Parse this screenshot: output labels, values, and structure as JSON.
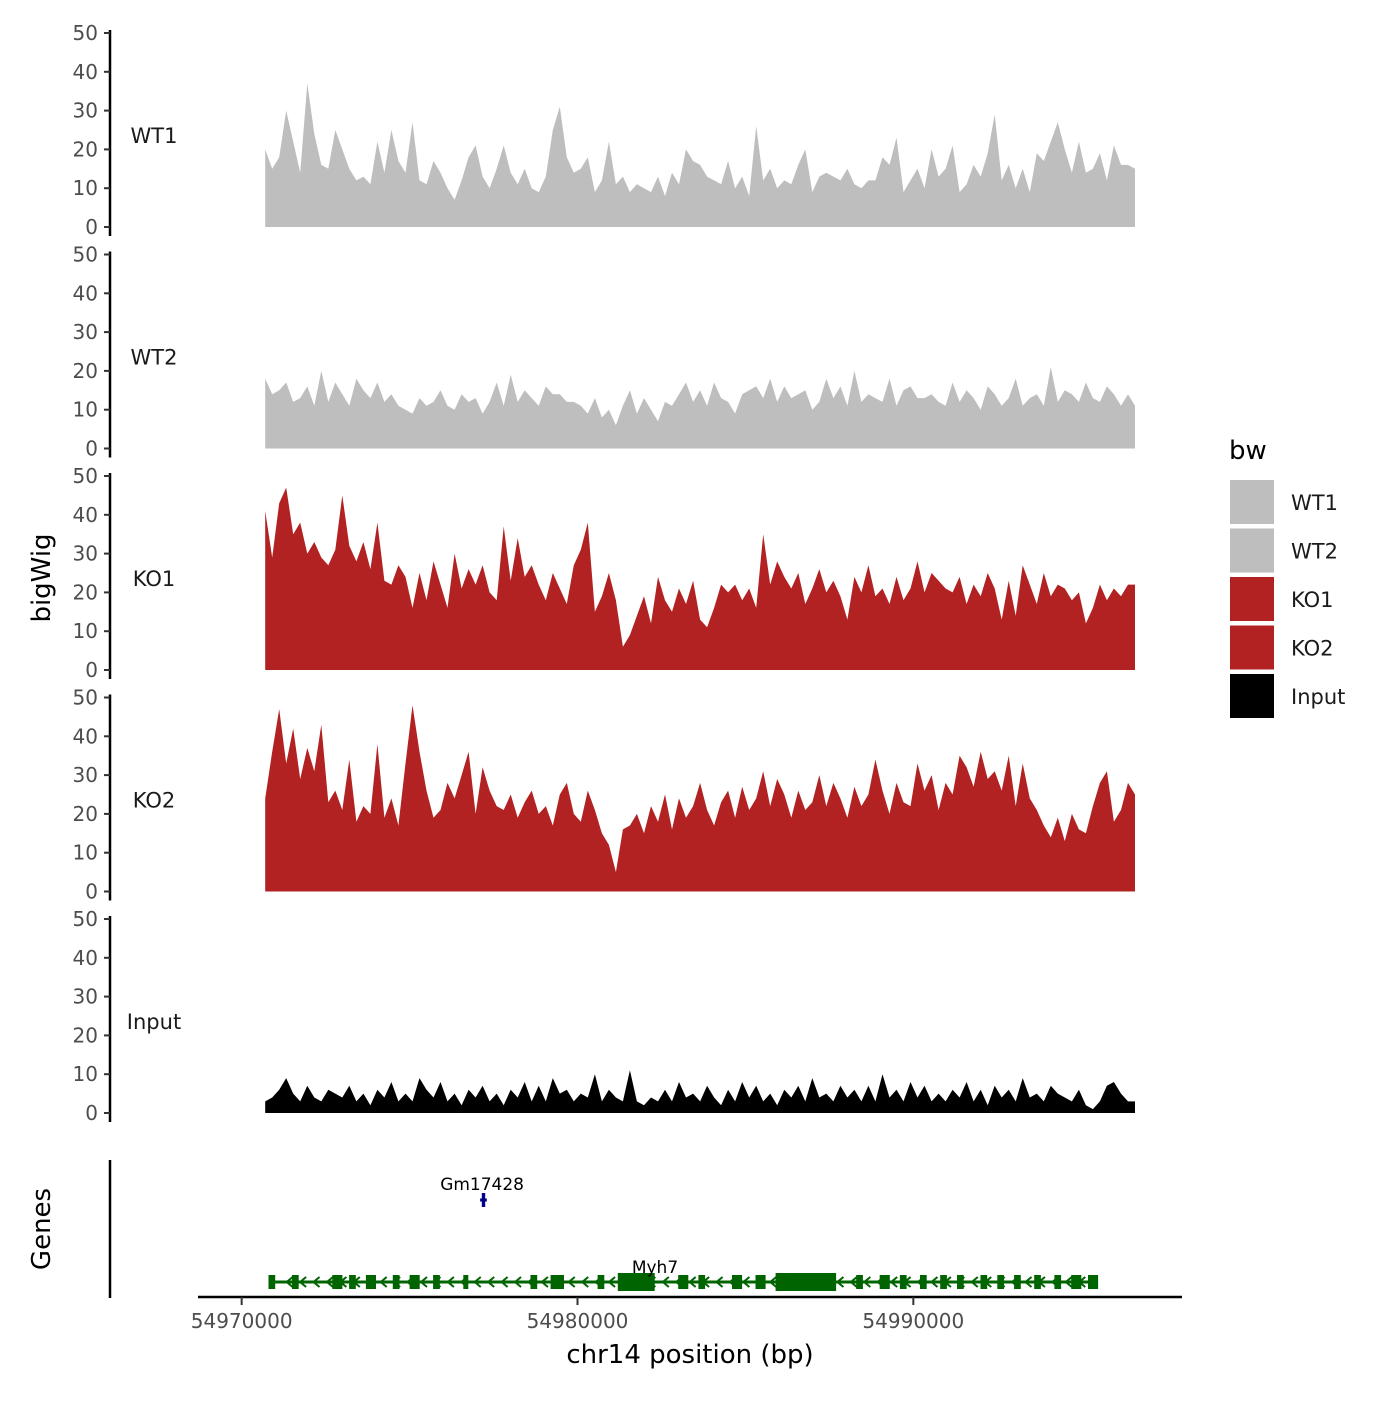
{
  "chart_data": {
    "type": "area",
    "title": "",
    "ylabel": "bigWig",
    "xlabel": "chr14 position (bp)",
    "ylim": [
      0,
      50
    ],
    "yticks": [
      0,
      10,
      20,
      30,
      40,
      50
    ],
    "xlim": [
      54968700,
      54998000
    ],
    "xticks": [
      54970000,
      54980000,
      54990000
    ],
    "xtick_labels": [
      "54970000",
      "54980000",
      "54990000"
    ],
    "data_range": [
      54970700,
      54996600
    ],
    "tracks": [
      {
        "name": "WT1",
        "color": "#bebebe",
        "values": [
          20,
          15,
          18,
          30,
          22,
          14,
          37,
          24,
          16,
          15,
          25,
          20,
          15,
          12,
          13,
          11,
          22,
          14,
          25,
          17,
          14,
          27,
          12,
          11,
          17,
          14,
          10,
          7,
          12,
          18,
          21,
          13,
          10,
          15,
          21,
          14,
          11,
          15,
          10,
          9,
          13,
          25,
          31,
          18,
          14,
          15,
          18,
          9,
          12,
          22,
          11,
          13,
          9,
          11,
          10,
          9,
          13,
          8,
          14,
          11,
          20,
          17,
          16,
          13,
          12,
          11,
          17,
          10,
          13,
          8,
          26,
          12,
          15,
          10,
          12,
          11,
          16,
          20,
          9,
          13,
          14,
          13,
          12,
          15,
          11,
          10,
          12,
          12,
          18,
          16,
          23,
          9,
          12,
          15,
          10,
          20,
          13,
          15,
          21,
          9,
          11,
          16,
          13,
          19,
          29,
          12,
          16,
          10,
          15,
          9,
          19,
          17,
          22,
          27,
          20,
          14,
          22,
          14,
          15,
          19,
          12,
          21,
          16,
          16,
          15
        ]
      },
      {
        "name": "WT2",
        "color": "#bebebe",
        "values": [
          18,
          14,
          15,
          17,
          12,
          13,
          16,
          11,
          20,
          12,
          17,
          14,
          11,
          18,
          15,
          13,
          17,
          12,
          14,
          11,
          10,
          9,
          13,
          11,
          12,
          15,
          11,
          10,
          14,
          12,
          13,
          9,
          12,
          17,
          11,
          19,
          12,
          15,
          13,
          11,
          16,
          14,
          14,
          12,
          12,
          11,
          9,
          13,
          8,
          10,
          6,
          11,
          15,
          9,
          13,
          10,
          7,
          12,
          11,
          14,
          17,
          12,
          15,
          11,
          17,
          13,
          12,
          9,
          14,
          15,
          16,
          13,
          18,
          12,
          16,
          13,
          14,
          15,
          10,
          12,
          18,
          13,
          16,
          11,
          20,
          12,
          14,
          13,
          12,
          18,
          11,
          15,
          16,
          13,
          13,
          14,
          12,
          11,
          17,
          12,
          15,
          13,
          10,
          16,
          14,
          11,
          13,
          18,
          11,
          13,
          14,
          11,
          21,
          12,
          15,
          14,
          12,
          17,
          13,
          12,
          16,
          14,
          11,
          14,
          11
        ]
      },
      {
        "name": "KO1",
        "color": "#b22222",
        "values": [
          41,
          29,
          43,
          47,
          35,
          38,
          30,
          33,
          29,
          27,
          31,
          45,
          32,
          28,
          33,
          26,
          38,
          23,
          22,
          27,
          24,
          16,
          25,
          18,
          28,
          22,
          16,
          30,
          21,
          26,
          22,
          27,
          20,
          18,
          37,
          23,
          34,
          24,
          27,
          22,
          18,
          25,
          21,
          17,
          27,
          31,
          38,
          15,
          19,
          25,
          18,
          6,
          9,
          14,
          19,
          12,
          24,
          18,
          15,
          21,
          17,
          23,
          13,
          11,
          16,
          22,
          20,
          22,
          18,
          21,
          16,
          35,
          22,
          28,
          24,
          21,
          25,
          17,
          21,
          26,
          20,
          23,
          19,
          13,
          24,
          20,
          27,
          19,
          21,
          17,
          24,
          18,
          21,
          28,
          20,
          25,
          23,
          21,
          20,
          24,
          17,
          22,
          19,
          25,
          21,
          13,
          23,
          14,
          27,
          22,
          17,
          25,
          19,
          22,
          21,
          18,
          20,
          12,
          16,
          22,
          18,
          21,
          19,
          22,
          22
        ]
      },
      {
        "name": "KO2",
        "color": "#b22222",
        "values": [
          24,
          36,
          47,
          33,
          42,
          29,
          37,
          31,
          43,
          23,
          26,
          21,
          34,
          18,
          22,
          20,
          38,
          19,
          24,
          17,
          33,
          48,
          36,
          26,
          19,
          21,
          28,
          24,
          30,
          36,
          20,
          32,
          26,
          22,
          21,
          25,
          19,
          23,
          26,
          20,
          22,
          17,
          25,
          28,
          20,
          18,
          26,
          21,
          15,
          12,
          5,
          16,
          17,
          20,
          15,
          22,
          18,
          25,
          16,
          24,
          19,
          22,
          28,
          21,
          17,
          23,
          26,
          19,
          27,
          21,
          24,
          31,
          22,
          29,
          25,
          19,
          26,
          21,
          23,
          30,
          22,
          28,
          24,
          19,
          27,
          22,
          25,
          34,
          26,
          20,
          28,
          23,
          22,
          33,
          26,
          30,
          21,
          28,
          25,
          35,
          32,
          27,
          36,
          29,
          31,
          26,
          35,
          22,
          33,
          24,
          21,
          17,
          14,
          19,
          13,
          20,
          16,
          15,
          22,
          28,
          31,
          18,
          21,
          28,
          25
        ]
      },
      {
        "name": "Input",
        "color": "#000000",
        "values": [
          3,
          4,
          6,
          9,
          5,
          3,
          7,
          4,
          3,
          6,
          5,
          4,
          7,
          3,
          5,
          2,
          6,
          4,
          8,
          3,
          5,
          3,
          9,
          6,
          4,
          8,
          3,
          5,
          2,
          6,
          4,
          7,
          3,
          5,
          2,
          6,
          4,
          8,
          3,
          7,
          3,
          9,
          5,
          6,
          3,
          5,
          4,
          10,
          3,
          6,
          4,
          3,
          11,
          3,
          2,
          4,
          3,
          6,
          3,
          8,
          4,
          5,
          3,
          7,
          4,
          2,
          6,
          3,
          8,
          4,
          7,
          3,
          5,
          2,
          6,
          4,
          7,
          3,
          9,
          4,
          5,
          3,
          7,
          4,
          6,
          3,
          7,
          3,
          10,
          4,
          6,
          3,
          8,
          4,
          7,
          3,
          5,
          3,
          6,
          4,
          8,
          3,
          6,
          2,
          7,
          4,
          6,
          3,
          9,
          4,
          5,
          3,
          7,
          5,
          4,
          3,
          6,
          2,
          1,
          3,
          7,
          8,
          5,
          3,
          3
        ]
      }
    ],
    "genes": [
      {
        "name": "Gm17428",
        "color": "#00008b",
        "start": 54977100,
        "end": 54977300,
        "exons": [
          [
            54977150,
            54977250
          ]
        ]
      },
      {
        "name": "Myh7",
        "color": "#006400",
        "strand": "-",
        "start": 54970800,
        "end": 54995500,
        "exons": [
          [
            54970800,
            54971000
          ],
          [
            54971500,
            54971700
          ],
          [
            54972700,
            54973000
          ],
          [
            54973200,
            54973400
          ],
          [
            54973700,
            54974000
          ],
          [
            54974500,
            54974700
          ],
          [
            54975000,
            54975300
          ],
          [
            54975700,
            54975900
          ],
          [
            54976600,
            54976750
          ],
          [
            54978600,
            54978800
          ],
          [
            54979200,
            54979600
          ],
          [
            54980600,
            54980800
          ],
          [
            54981200,
            54982300
          ],
          [
            54983000,
            54983300
          ],
          [
            54983600,
            54983800
          ],
          [
            54984600,
            54984900
          ],
          [
            54985300,
            54985600
          ],
          [
            54985900,
            54987700
          ],
          [
            54988300,
            54988500
          ],
          [
            54989000,
            54989300
          ],
          [
            54989600,
            54989800
          ],
          [
            54990200,
            54990400
          ],
          [
            54990800,
            54991000
          ],
          [
            54991300,
            54991500
          ],
          [
            54992000,
            54992200
          ],
          [
            54992500,
            54992700
          ],
          [
            54993000,
            54993200
          ],
          [
            54993600,
            54993800
          ],
          [
            54994200,
            54994400
          ],
          [
            54994700,
            54995000
          ],
          [
            54995200,
            54995500
          ]
        ]
      }
    ],
    "genes_label": "Genes",
    "legend": {
      "title": "bw",
      "position": "right",
      "entries": [
        {
          "label": "WT1",
          "color": "#bebebe"
        },
        {
          "label": "WT2",
          "color": "#bebebe"
        },
        {
          "label": "KO1",
          "color": "#b22222"
        },
        {
          "label": "KO2",
          "color": "#b22222"
        },
        {
          "label": "Input",
          "color": "#000000"
        }
      ]
    }
  }
}
